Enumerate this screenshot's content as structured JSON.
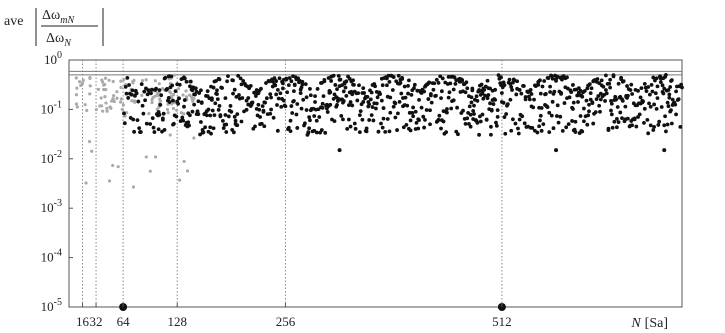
{
  "chart_data": {
    "type": "scatter",
    "title": "",
    "ylabel": {
      "prefix": "ave",
      "numerator": "Δω",
      "numerator_sub": "mN",
      "denominator": "Δω",
      "denominator_sub": "N"
    },
    "xlabel": {
      "variable": "N",
      "unit": "[Sa]"
    },
    "xlim": [
      0,
      725
    ],
    "ylim": [
      1e-05,
      1
    ],
    "y_scale": "log",
    "x_ticks": [
      {
        "value": 16,
        "label": "16"
      },
      {
        "value": 32,
        "label": "32"
      },
      {
        "value": 64,
        "label": "64"
      },
      {
        "value": 128,
        "label": "128"
      },
      {
        "value": 256,
        "label": "256"
      },
      {
        "value": 512,
        "label": "512"
      }
    ],
    "y_ticks": [
      {
        "value": 1e-05,
        "base": "10",
        "exp": "-5"
      },
      {
        "value": 0.0001,
        "base": "10",
        "exp": "-4"
      },
      {
        "value": 0.001,
        "base": "10",
        "exp": "-3"
      },
      {
        "value": 0.01,
        "base": "10",
        "exp": "-2"
      },
      {
        "value": 0.1,
        "base": "10",
        "exp": "-1"
      },
      {
        "value": 1,
        "base": "10",
        "exp": "0"
      }
    ],
    "vertical_reference_lines": [
      16,
      32,
      64,
      128,
      256,
      512
    ],
    "horizontal_reference_lines": [
      0.5,
      0.59
    ],
    "highlight_markers": [
      64,
      512
    ],
    "series": [
      {
        "color": "#aaaaaa",
        "x_range": [
          8,
          149
        ],
        "approx_point_count": 140,
        "y_range": [
          0.002,
          0.5
        ]
      },
      {
        "color": "#111111",
        "x_range": [
          65,
          725
        ],
        "pattern": "scalloped arcs, one per 64-sample period; upper envelope ≈0.5, minima dropping to ≈0.015 near N = 320, 576, 704",
        "upper_envelope": 0.5,
        "lower_y": 0.015
      }
    ]
  }
}
